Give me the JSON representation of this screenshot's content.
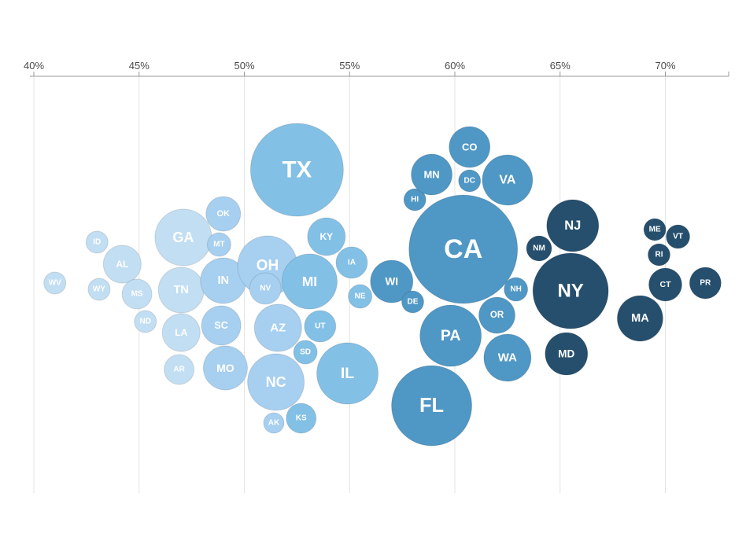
{
  "chart_data": {
    "type": "scatter",
    "xlim": [
      40,
      73
    ],
    "x_ticks": [
      40,
      45,
      50,
      55,
      60,
      65,
      70
    ],
    "x_tick_labels": [
      "40%",
      "45%",
      "50%",
      "55%",
      "60%",
      "65%",
      "70%"
    ],
    "grid": true,
    "colors": {
      "lightest": "#c2def3",
      "light": "#a6cff0",
      "mid": "#83c0e6",
      "medium_dark": "#4f97c5",
      "dark": "#264f6e",
      "stroke": "#ffffff"
    },
    "points": [
      {
        "label": "WV",
        "x": 41.0,
        "color": "lightest"
      },
      {
        "label": "ID",
        "x": 43.0,
        "color": "lightest"
      },
      {
        "label": "WY",
        "x": 43.1,
        "color": "lightest"
      },
      {
        "label": "AL",
        "x": 44.2,
        "color": "lightest"
      },
      {
        "label": "MS",
        "x": 44.9,
        "color": "lightest"
      },
      {
        "label": "ND",
        "x": 45.3,
        "color": "lightest"
      },
      {
        "label": "GA",
        "x": 47.1,
        "color": "lightest"
      },
      {
        "label": "TN",
        "x": 47.0,
        "color": "lightest"
      },
      {
        "label": "LA",
        "x": 47.0,
        "color": "lightest"
      },
      {
        "label": "AR",
        "x": 46.9,
        "color": "lightest"
      },
      {
        "label": "OK",
        "x": 49.0,
        "color": "light"
      },
      {
        "label": "MT",
        "x": 48.8,
        "color": "light"
      },
      {
        "label": "IN",
        "x": 49.0,
        "color": "light"
      },
      {
        "label": "SC",
        "x": 48.9,
        "color": "light"
      },
      {
        "label": "MO",
        "x": 49.1,
        "color": "light"
      },
      {
        "label": "OH",
        "x": 51.1,
        "color": "light"
      },
      {
        "label": "NV",
        "x": 51.0,
        "color": "light"
      },
      {
        "label": "AZ",
        "x": 51.6,
        "color": "light"
      },
      {
        "label": "NC",
        "x": 51.5,
        "color": "light"
      },
      {
        "label": "AK",
        "x": 51.4,
        "color": "light"
      },
      {
        "label": "TX",
        "x": 52.5,
        "color": "mid"
      },
      {
        "label": "MI",
        "x": 53.1,
        "color": "mid"
      },
      {
        "label": "SD",
        "x": 52.9,
        "color": "mid"
      },
      {
        "label": "KS",
        "x": 52.7,
        "color": "mid"
      },
      {
        "label": "KY",
        "x": 53.9,
        "color": "mid"
      },
      {
        "label": "UT",
        "x": 53.6,
        "color": "mid"
      },
      {
        "label": "IL",
        "x": 54.9,
        "color": "mid"
      },
      {
        "label": "IA",
        "x": 55.1,
        "color": "mid"
      },
      {
        "label": "NE",
        "x": 55.5,
        "color": "mid"
      },
      {
        "label": "WI",
        "x": 57.0,
        "color": "medium_dark"
      },
      {
        "label": "HI",
        "x": 58.1,
        "color": "medium_dark"
      },
      {
        "label": "DE",
        "x": 58.0,
        "color": "medium_dark"
      },
      {
        "label": "MN",
        "x": 58.9,
        "color": "medium_dark"
      },
      {
        "label": "PA",
        "x": 59.8,
        "color": "medium_dark"
      },
      {
        "label": "FL",
        "x": 58.9,
        "color": "medium_dark"
      },
      {
        "label": "CA",
        "x": 60.4,
        "color": "medium_dark"
      },
      {
        "label": "CO",
        "x": 60.7,
        "color": "medium_dark"
      },
      {
        "label": "DC",
        "x": 60.7,
        "color": "medium_dark"
      },
      {
        "label": "OR",
        "x": 62.0,
        "color": "medium_dark"
      },
      {
        "label": "VA",
        "x": 62.5,
        "color": "medium_dark"
      },
      {
        "label": "WA",
        "x": 62.5,
        "color": "medium_dark"
      },
      {
        "label": "NH",
        "x": 62.9,
        "color": "medium_dark"
      },
      {
        "label": "NM",
        "x": 64.0,
        "color": "dark"
      },
      {
        "label": "NY",
        "x": 65.5,
        "color": "dark"
      },
      {
        "label": "NJ",
        "x": 65.6,
        "color": "dark"
      },
      {
        "label": "MD",
        "x": 65.3,
        "color": "dark"
      },
      {
        "label": "MA",
        "x": 68.8,
        "color": "dark"
      },
      {
        "label": "ME",
        "x": 69.5,
        "color": "dark"
      },
      {
        "label": "RI",
        "x": 69.7,
        "color": "dark"
      },
      {
        "label": "CT",
        "x": 70.0,
        "color": "dark"
      },
      {
        "label": "VT",
        "x": 70.6,
        "color": "dark"
      },
      {
        "label": "PR",
        "x": 71.9,
        "color": "dark"
      }
    ]
  }
}
